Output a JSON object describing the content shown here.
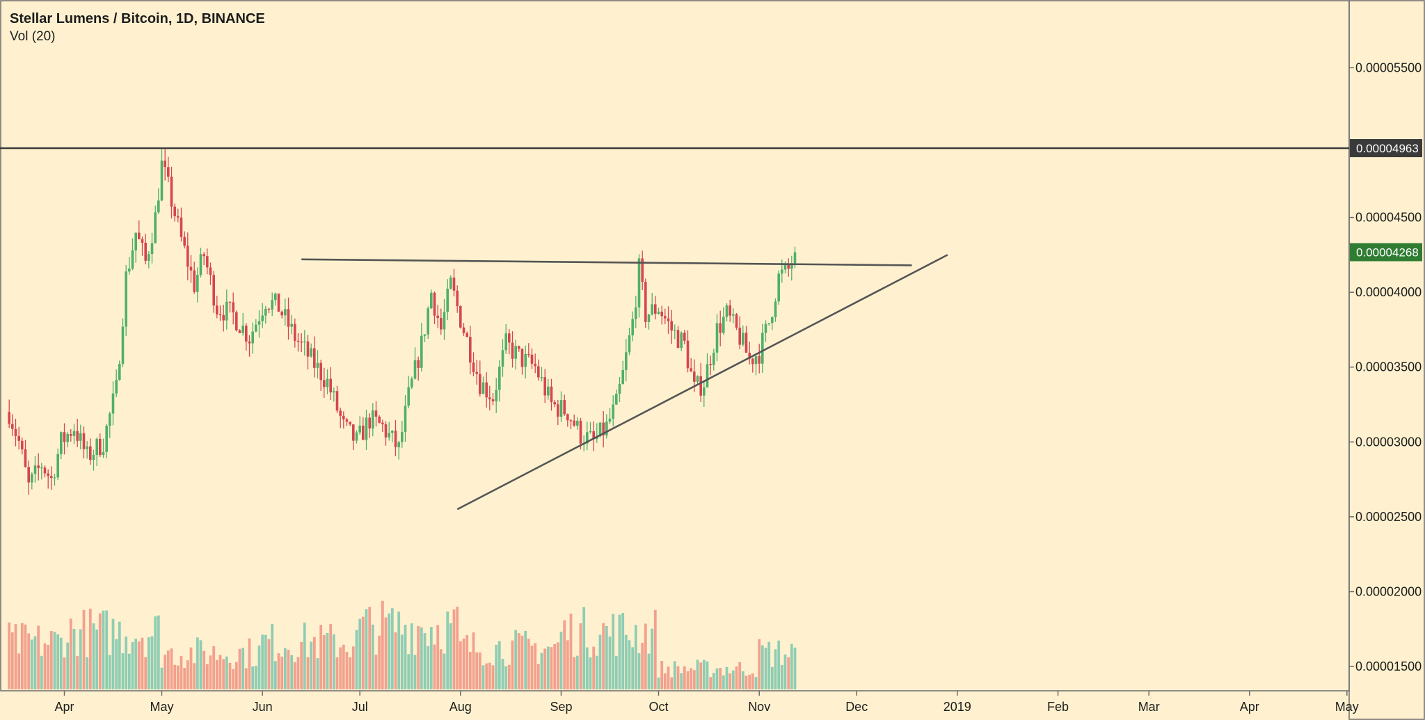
{
  "header": {
    "title": "Stellar Lumens / Bitcoin, 1D, BINANCE",
    "volume_label": "Vol (20)"
  },
  "colors": {
    "background": "#fff1cf",
    "up": "#4faf6b",
    "down": "#d64550",
    "volume_up": "#8fcdb3",
    "volume_down": "#f2a18e",
    "trendline": "#555555",
    "last_price_tag": "#2f7d32",
    "resistance_tag": "#3a3a3a"
  },
  "chart_data": {
    "type": "candlestick",
    "title": "Stellar Lumens / Bitcoin, 1D, BINANCE",
    "xlabel": "",
    "ylabel": "",
    "y_axis_position": "right",
    "ylim": [
      1.37e-05,
      5.925e-05
    ],
    "y_ticks": [
      "0.00005500",
      "0.00004500",
      "0.00004000",
      "0.00003500",
      "0.00003000",
      "0.00002500",
      "0.00002000",
      "0.00001500"
    ],
    "x_ticks": [
      "Apr",
      "May",
      "Jun",
      "Jul",
      "Aug",
      "Sep",
      "Oct",
      "Nov",
      "Dec",
      "2019",
      "Feb",
      "Mar",
      "Apr",
      "May"
    ],
    "price_tags": [
      {
        "label": "0.00004963",
        "value": 4.963e-05,
        "kind": "resistance"
      },
      {
        "label": "0.00004268",
        "value": 4.268e-05,
        "kind": "last"
      }
    ],
    "price_path": [
      [
        "2018-03-15",
        3.2e-05
      ],
      [
        "2018-03-18",
        3e-05
      ],
      [
        "2018-03-21",
        2.7e-05
      ],
      [
        "2018-03-25",
        2.85e-05
      ],
      [
        "2018-03-28",
        2.75e-05
      ],
      [
        "2018-03-31",
        3e-05
      ],
      [
        "2018-04-04",
        3.1e-05
      ],
      [
        "2018-04-08",
        2.9e-05
      ],
      [
        "2018-04-13",
        3e-05
      ],
      [
        "2018-04-17",
        3.35e-05
      ],
      [
        "2018-04-20",
        4.1e-05
      ],
      [
        "2018-04-23",
        4.4e-05
      ],
      [
        "2018-04-26",
        4.2e-05
      ],
      [
        "2018-04-29",
        4.5e-05
      ],
      [
        "2018-05-01",
        4.85e-05
      ],
      [
        "2018-05-03",
        4.7e-05
      ],
      [
        "2018-05-07",
        4.35e-05
      ],
      [
        "2018-05-11",
        4.05e-05
      ],
      [
        "2018-05-14",
        4.25e-05
      ],
      [
        "2018-05-18",
        3.9e-05
      ],
      [
        "2018-05-23",
        3.85e-05
      ],
      [
        "2018-05-28",
        3.7e-05
      ],
      [
        "2018-06-02",
        3.95e-05
      ],
      [
        "2018-06-06",
        3.9e-05
      ],
      [
        "2018-06-11",
        3.7e-05
      ],
      [
        "2018-06-16",
        3.55e-05
      ],
      [
        "2018-06-21",
        3.4e-05
      ],
      [
        "2018-06-26",
        3.1e-05
      ],
      [
        "2018-06-30",
        3e-05
      ],
      [
        "2018-07-04",
        3.15e-05
      ],
      [
        "2018-07-08",
        3.1e-05
      ],
      [
        "2018-07-13",
        2.95e-05
      ],
      [
        "2018-07-16",
        3.3e-05
      ],
      [
        "2018-07-20",
        3.65e-05
      ],
      [
        "2018-07-23",
        4e-05
      ],
      [
        "2018-07-26",
        3.75e-05
      ],
      [
        "2018-07-29",
        4.05e-05
      ],
      [
        "2018-08-02",
        3.75e-05
      ],
      [
        "2018-08-07",
        3.4e-05
      ],
      [
        "2018-08-11",
        3.3e-05
      ],
      [
        "2018-08-15",
        3.65e-05
      ],
      [
        "2018-08-20",
        3.55e-05
      ],
      [
        "2018-08-24",
        3.5e-05
      ],
      [
        "2018-08-29",
        3.25e-05
      ],
      [
        "2018-09-03",
        3.2e-05
      ],
      [
        "2018-09-07",
        3.05e-05
      ],
      [
        "2018-09-11",
        3e-05
      ],
      [
        "2018-09-15",
        3.1e-05
      ],
      [
        "2018-09-18",
        3.25e-05
      ],
      [
        "2018-09-20",
        3.45e-05
      ],
      [
        "2018-09-23",
        3.8e-05
      ],
      [
        "2018-09-25",
        4.15e-05
      ],
      [
        "2018-09-27",
        3.85e-05
      ],
      [
        "2018-10-01",
        3.9e-05
      ],
      [
        "2018-10-05",
        3.75e-05
      ],
      [
        "2018-10-09",
        3.65e-05
      ],
      [
        "2018-10-12",
        3.35e-05
      ],
      [
        "2018-10-15",
        3.4e-05
      ],
      [
        "2018-10-19",
        3.75e-05
      ],
      [
        "2018-10-22",
        3.85e-05
      ],
      [
        "2018-10-26",
        3.7e-05
      ],
      [
        "2018-10-29",
        3.55e-05
      ],
      [
        "2018-11-01",
        3.6e-05
      ],
      [
        "2018-11-04",
        3.8e-05
      ],
      [
        "2018-11-07",
        4.1e-05
      ],
      [
        "2018-11-10",
        4.15e-05
      ],
      [
        "2018-11-12",
        4.268e-05
      ]
    ],
    "trendlines": [
      {
        "name": "",
        "start": [
          "2018-06-13",
          4.22e-05
        ],
        "end": [
          "2018-12-18",
          4.18e-05
        ]
      },
      {
        "name": "",
        "start": [
          "2018-07-31",
          2.55e-05
        ],
        "end": [
          "2018-12-29",
          4.25e-05
        ]
      }
    ],
    "horizontal_lines": [
      4.963e-05
    ],
    "volume": {
      "label": "Vol (20)",
      "bars_by_month": [
        {
          "month": "2018-03",
          "relative_level": 0.45
        },
        {
          "month": "2018-04",
          "relative_level": 0.55
        },
        {
          "month": "2018-05",
          "relative_level": 0.35
        },
        {
          "month": "2018-06",
          "relative_level": 0.45
        },
        {
          "month": "2018-07",
          "relative_level": 0.6
        },
        {
          "month": "2018-08",
          "relative_level": 0.4
        },
        {
          "month": "2018-09",
          "relative_level": 0.55
        },
        {
          "month": "2018-10",
          "relative_level": 0.2
        },
        {
          "month": "2018-11",
          "relative_level": 0.35
        }
      ]
    }
  }
}
